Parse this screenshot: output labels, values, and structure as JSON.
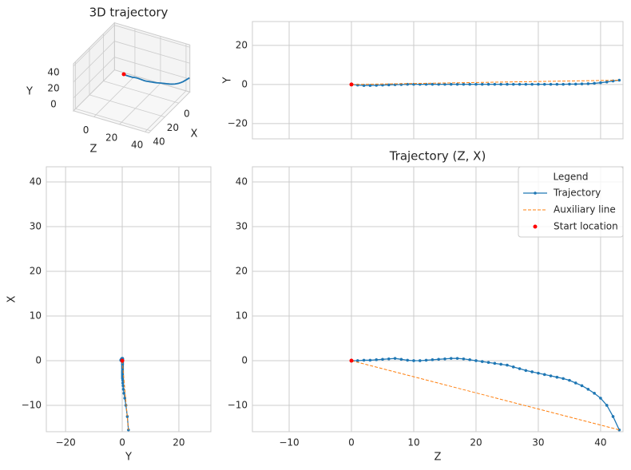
{
  "chart_data": [
    {
      "type": "line3d",
      "title": "3D trajectory",
      "xlabel": "X",
      "ylabel": "Y",
      "zlabel": "Z",
      "xlim": [
        -16,
        43
      ],
      "ylim": [
        -16,
        43
      ],
      "zlim": [
        -16,
        43
      ],
      "xticks": [
        0,
        20,
        40
      ],
      "yticks": [
        0,
        20,
        40
      ],
      "zticks": [
        0,
        20,
        40
      ],
      "series": [
        {
          "name": "Trajectory",
          "color": "#1f77b4",
          "style": "line",
          "x": [
            0,
            0,
            0.1,
            0.1,
            0.2,
            0.3,
            0.4,
            0.5,
            0.3,
            0.1,
            0,
            0,
            0.1,
            0.2,
            0.3,
            0.4,
            0.5,
            0.5,
            0.4,
            0.2,
            0,
            -0.2,
            -0.4,
            -0.6,
            -0.8,
            -1.0,
            -1.4,
            -1.8,
            -2.2,
            -2.5,
            -2.8,
            -3.1,
            -3.4,
            -3.7,
            -4.0,
            -4.4,
            -5.0,
            -5.6,
            -6.4,
            -7.3,
            -8.4,
            -10.0,
            -12.5,
            -15.5
          ],
          "y": [
            0,
            -0.3,
            -0.5,
            -0.5,
            -0.4,
            -0.3,
            -0.2,
            -0.1,
            0,
            0.1,
            0.1,
            0.1,
            0.1,
            0.1,
            0.1,
            0.1,
            0.1,
            0.1,
            0.1,
            0.1,
            0.1,
            0.1,
            0.1,
            0.1,
            0.1,
            0.1,
            0.1,
            0.1,
            0.1,
            0.1,
            0.1,
            0.1,
            0.1,
            0.1,
            0.1,
            0.2,
            0.2,
            0.3,
            0.4,
            0.6,
            0.9,
            1.3,
            1.8,
            2.2
          ],
          "z": [
            0,
            1,
            2,
            3,
            4,
            5,
            6,
            7,
            8,
            9,
            10,
            11,
            12,
            13,
            14,
            15,
            16,
            17,
            18,
            19,
            20,
            21,
            22,
            23,
            24,
            25,
            26,
            27,
            28,
            29,
            30,
            31,
            32,
            33,
            34,
            35,
            36,
            37,
            38,
            39,
            40,
            41,
            42,
            43
          ]
        },
        {
          "name": "Start location",
          "color": "red",
          "style": "point",
          "x": [
            0
          ],
          "y": [
            0
          ],
          "z": [
            0
          ]
        }
      ]
    },
    {
      "type": "line",
      "ylabel": "Y",
      "xlim": [
        -15.9,
        43.6
      ],
      "ylim": [
        -27.8,
        32.2
      ],
      "grid": true,
      "xticks": [
        {
          "value": -10,
          "label": "−10"
        },
        0,
        10,
        20,
        30,
        40
      ],
      "show_xticklabels": false,
      "yticks": [
        {
          "value": -20,
          "label": "−20"
        },
        0,
        20
      ],
      "series": [
        {
          "name": "Trajectory",
          "color": "#1f77b4",
          "style": "line-marker",
          "x": [
            0,
            1,
            2,
            3,
            4,
            5,
            6,
            7,
            8,
            9,
            10,
            11,
            12,
            13,
            14,
            15,
            16,
            17,
            18,
            19,
            20,
            21,
            22,
            23,
            24,
            25,
            26,
            27,
            28,
            29,
            30,
            31,
            32,
            33,
            34,
            35,
            36,
            37,
            38,
            39,
            40,
            41,
            42,
            43
          ],
          "values": [
            0,
            -0.3,
            -0.5,
            -0.5,
            -0.4,
            -0.3,
            -0.2,
            -0.1,
            0,
            0.1,
            0.1,
            0.1,
            0.1,
            0.1,
            0.1,
            0.1,
            0.1,
            0.1,
            0.1,
            0.1,
            0.1,
            0.1,
            0.1,
            0.1,
            0.1,
            0.1,
            0.1,
            0.1,
            0.1,
            0.1,
            0.1,
            0.1,
            0.1,
            0.1,
            0.1,
            0.2,
            0.2,
            0.3,
            0.4,
            0.6,
            0.9,
            1.3,
            1.8,
            2.2
          ]
        },
        {
          "name": "Auxiliary line",
          "color": "#ff7f0e",
          "style": "dashed",
          "x": [
            0,
            43
          ],
          "values": [
            0,
            2.2
          ]
        },
        {
          "name": "Start location",
          "color": "red",
          "style": "point",
          "x": [
            0
          ],
          "values": [
            0
          ]
        }
      ]
    },
    {
      "type": "line",
      "xlabel": "Y",
      "ylabel": "X",
      "xlim": [
        -26.8,
        31.3
      ],
      "ylim": [
        -15.9,
        43.4
      ],
      "grid": true,
      "xticks": [
        {
          "value": -20,
          "label": "−20"
        },
        0,
        20
      ],
      "yticks": [
        {
          "value": -10,
          "label": "−10"
        },
        0,
        10,
        20,
        30,
        40
      ],
      "series": [
        {
          "name": "Trajectory",
          "color": "#1f77b4",
          "style": "line-marker",
          "x": [
            0,
            -0.3,
            -0.5,
            -0.5,
            -0.4,
            -0.3,
            -0.2,
            -0.1,
            0,
            0.1,
            0.1,
            0.1,
            0.1,
            0.1,
            0.1,
            0.1,
            0.1,
            0.1,
            0.1,
            0.1,
            0.1,
            0.1,
            0.1,
            0.1,
            0.1,
            0.1,
            0.1,
            0.1,
            0.1,
            0.1,
            0.1,
            0.1,
            0.1,
            0.1,
            0.1,
            0.2,
            0.2,
            0.3,
            0.4,
            0.6,
            0.9,
            1.3,
            1.8,
            2.2
          ],
          "values": [
            0,
            0,
            0.1,
            0.1,
            0.2,
            0.3,
            0.4,
            0.5,
            0.3,
            0.1,
            0,
            0,
            0.1,
            0.2,
            0.3,
            0.4,
            0.5,
            0.5,
            0.4,
            0.2,
            0,
            -0.2,
            -0.4,
            -0.6,
            -0.8,
            -1.0,
            -1.4,
            -1.8,
            -2.2,
            -2.5,
            -2.8,
            -3.1,
            -3.4,
            -3.7,
            -4.0,
            -4.4,
            -5.0,
            -5.6,
            -6.4,
            -7.3,
            -8.4,
            -10.0,
            -12.5,
            -15.5
          ]
        },
        {
          "name": "Auxiliary line",
          "color": "#ff7f0e",
          "style": "dashed",
          "x": [
            0,
            2.2
          ],
          "values": [
            0,
            -15.5
          ]
        },
        {
          "name": "Start location",
          "color": "red",
          "style": "point",
          "x": [
            0
          ],
          "values": [
            0
          ]
        }
      ]
    },
    {
      "type": "line",
      "title": "Trajectory (Z, X)",
      "xlabel": "Z",
      "xlim": [
        -15.9,
        43.6
      ],
      "ylim": [
        -15.9,
        43.4
      ],
      "grid": true,
      "xticks": [
        {
          "value": -10,
          "label": "−10"
        },
        0,
        10,
        20,
        30,
        40
      ],
      "yticks": [
        {
          "value": -10,
          "label": "−10"
        },
        0,
        10,
        20,
        30,
        40
      ],
      "legend": {
        "title": "Legend",
        "loc": "upper right"
      },
      "series": [
        {
          "name": "Trajectory",
          "color": "#1f77b4",
          "style": "line-marker",
          "x": [
            0,
            1,
            2,
            3,
            4,
            5,
            6,
            7,
            8,
            9,
            10,
            11,
            12,
            13,
            14,
            15,
            16,
            17,
            18,
            19,
            20,
            21,
            22,
            23,
            24,
            25,
            26,
            27,
            28,
            29,
            30,
            31,
            32,
            33,
            34,
            35,
            36,
            37,
            38,
            39,
            40,
            41,
            42,
            43
          ],
          "values": [
            0,
            0,
            0.1,
            0.1,
            0.2,
            0.3,
            0.4,
            0.5,
            0.3,
            0.1,
            0,
            0,
            0.1,
            0.2,
            0.3,
            0.4,
            0.5,
            0.5,
            0.4,
            0.2,
            0,
            -0.2,
            -0.4,
            -0.6,
            -0.8,
            -1.0,
            -1.4,
            -1.8,
            -2.2,
            -2.5,
            -2.8,
            -3.1,
            -3.4,
            -3.7,
            -4.0,
            -4.4,
            -5.0,
            -5.6,
            -6.4,
            -7.3,
            -8.4,
            -10.0,
            -12.5,
            -15.5
          ]
        },
        {
          "name": "Auxiliary line",
          "color": "#ff7f0e",
          "style": "dashed",
          "x": [
            0,
            43
          ],
          "values": [
            0,
            -15.5
          ]
        },
        {
          "name": "Start location",
          "color": "red",
          "style": "point",
          "x": [
            0
          ],
          "values": [
            0
          ]
        }
      ]
    }
  ]
}
